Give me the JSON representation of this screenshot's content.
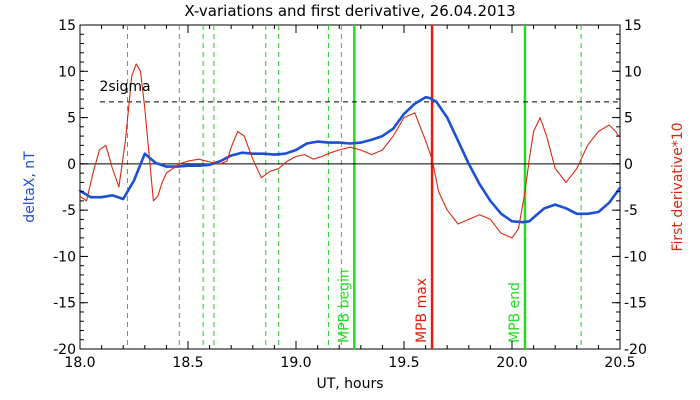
{
  "chart_data": {
    "type": "line",
    "title": "X-variations and first derivative, 26.04.2013",
    "xlabel": "UT, hours",
    "ylabel_left": "deltaX, nT",
    "ylabel_right": "First derivative*10",
    "xlim": [
      18.0,
      20.5
    ],
    "ylim": [
      -20,
      15
    ],
    "x_ticks": [
      18.0,
      18.5,
      19.0,
      19.5,
      20.0,
      20.5
    ],
    "x_tick_labels": [
      "18.0",
      "18.5",
      "19.0",
      "19.5",
      "20.0",
      "20.5"
    ],
    "y_ticks": [
      15,
      10,
      5,
      0,
      -5,
      -10,
      -15,
      -20
    ],
    "y_tick_labels": [
      "15",
      "10",
      "5",
      "0",
      "-5",
      "-10",
      "-15",
      "-20"
    ],
    "colors": {
      "deltaX": "#1a4fd6",
      "derivative": "#d42a10",
      "mpb_begin": "#22dd22",
      "mpb_max": "#e01e10",
      "mpb_end": "#22dd22",
      "guide": "#22cc22",
      "sigma": "#000000",
      "zero": "#000000"
    },
    "sigma": {
      "label": "2sigma",
      "value": 6.7
    },
    "zero_line": 0,
    "guide_lines_x": [
      18.22,
      18.46,
      18.57,
      18.62,
      18.86,
      18.92,
      19.15,
      19.21,
      20.32
    ],
    "markers": [
      {
        "label": "MPB begin",
        "x": 19.27,
        "color_key": "mpb_begin"
      },
      {
        "label": "MPB max",
        "x": 19.63,
        "color_key": "mpb_max"
      },
      {
        "label": "MPB end",
        "x": 20.06,
        "color_key": "mpb_end"
      }
    ],
    "series": [
      {
        "key": "deltaX",
        "x": [
          18.0,
          18.05,
          18.1,
          18.15,
          18.2,
          18.25,
          18.3,
          18.35,
          18.4,
          18.45,
          18.5,
          18.55,
          18.6,
          18.65,
          18.7,
          18.75,
          18.8,
          18.85,
          18.9,
          18.95,
          19.0,
          19.05,
          19.1,
          19.15,
          19.2,
          19.25,
          19.3,
          19.35,
          19.4,
          19.45,
          19.5,
          19.55,
          19.6,
          19.62,
          19.65,
          19.7,
          19.75,
          19.8,
          19.85,
          19.9,
          19.95,
          20.0,
          20.05,
          20.08,
          20.1,
          20.15,
          20.2,
          20.25,
          20.3,
          20.35,
          20.4,
          20.45,
          20.5
        ],
        "values": [
          -2.9,
          -3.6,
          -3.6,
          -3.4,
          -3.8,
          -1.8,
          1.1,
          0.1,
          -0.3,
          -0.3,
          -0.2,
          -0.2,
          -0.1,
          0.3,
          0.9,
          1.2,
          1.1,
          1.1,
          1.0,
          1.1,
          1.5,
          2.2,
          2.4,
          2.3,
          2.3,
          2.2,
          2.3,
          2.6,
          3.0,
          3.8,
          5.4,
          6.5,
          7.2,
          7.1,
          6.7,
          5.0,
          2.5,
          0.0,
          -2.2,
          -4.0,
          -5.4,
          -6.2,
          -6.3,
          -6.2,
          -5.8,
          -4.8,
          -4.4,
          -4.8,
          -5.4,
          -5.4,
          -5.2,
          -4.2,
          -2.6
        ]
      },
      {
        "key": "derivative",
        "x": [
          18.0,
          18.03,
          18.06,
          18.09,
          18.12,
          18.15,
          18.18,
          18.21,
          18.24,
          18.26,
          18.28,
          18.3,
          18.32,
          18.34,
          18.36,
          18.38,
          18.4,
          18.43,
          18.46,
          18.5,
          18.55,
          18.6,
          18.65,
          18.68,
          18.7,
          18.73,
          18.76,
          18.8,
          18.84,
          18.88,
          18.92,
          18.96,
          19.0,
          19.04,
          19.08,
          19.12,
          19.16,
          19.2,
          19.25,
          19.3,
          19.35,
          19.4,
          19.45,
          19.5,
          19.55,
          19.6,
          19.63,
          19.66,
          19.7,
          19.75,
          19.8,
          19.85,
          19.9,
          19.95,
          20.0,
          20.03,
          20.06,
          20.08,
          20.1,
          20.13,
          20.16,
          20.2,
          20.25,
          20.3,
          20.35,
          20.4,
          20.45,
          20.48,
          20.5
        ],
        "values": [
          -3.5,
          -4.0,
          -1.0,
          1.5,
          2.0,
          -0.5,
          -2.5,
          2.5,
          9.5,
          10.8,
          10.0,
          6.0,
          1.0,
          -4.0,
          -3.5,
          -2.0,
          -1.0,
          -0.5,
          0.0,
          0.3,
          0.5,
          0.2,
          0.0,
          0.3,
          1.8,
          3.5,
          3.0,
          0.5,
          -1.5,
          -0.8,
          -0.5,
          0.3,
          0.8,
          1.0,
          0.5,
          0.8,
          1.2,
          1.5,
          1.8,
          1.5,
          1.0,
          1.5,
          3.0,
          5.0,
          5.5,
          2.5,
          0.5,
          -3.0,
          -5.0,
          -6.5,
          -6.0,
          -5.5,
          -6.0,
          -7.5,
          -8.0,
          -7.0,
          -3.0,
          0.5,
          3.5,
          5.0,
          3.0,
          -0.5,
          -2.0,
          -0.5,
          2.0,
          3.5,
          4.2,
          3.5,
          2.8
        ]
      }
    ]
  }
}
